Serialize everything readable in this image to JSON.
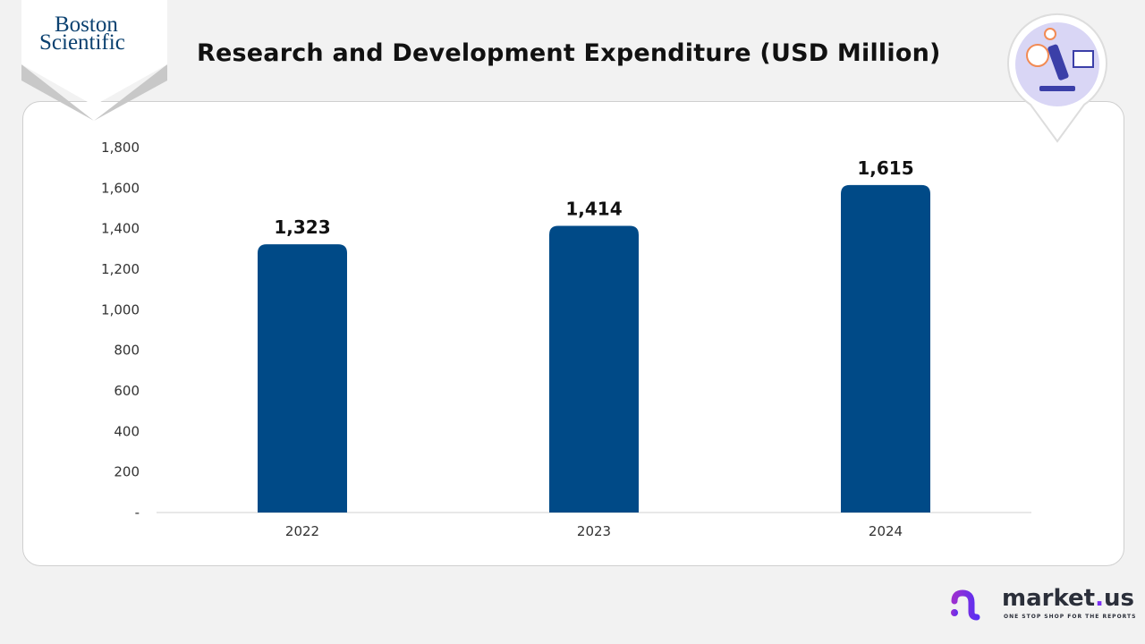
{
  "brand": {
    "company_logo": "Boston Scientific",
    "footer_logo": "market.us",
    "footer_tagline": "ONE STOP SHOP FOR THE REPORTS",
    "accent": "#7b2ff2"
  },
  "header": {
    "title": "Research and Development Expenditure (USD Million)",
    "icon": "microscope-lab-icon"
  },
  "chart_data": {
    "type": "bar",
    "title": "Research and Development Expenditure (USD Million)",
    "categories": [
      "2022",
      "2023",
      "2024"
    ],
    "values": [
      1323,
      1414,
      1615
    ],
    "data_labels": [
      "1,323",
      "1,414",
      "1,615"
    ],
    "y_ticks": [
      "-",
      "200",
      "400",
      "600",
      "800",
      "1,000",
      "1,200",
      "1,400",
      "1,600",
      "1,800"
    ],
    "ylim": [
      0,
      1800
    ],
    "grid": false,
    "bar_color": "#004a87",
    "xlabel": "",
    "ylabel": ""
  }
}
